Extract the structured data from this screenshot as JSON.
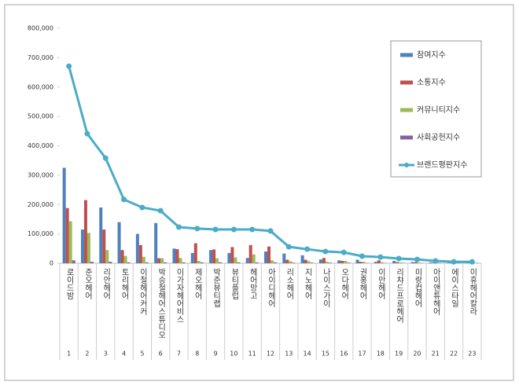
{
  "chart_data": {
    "type": "bar",
    "categories": [
      "로이드밤",
      "준오헤어",
      "리안헤어",
      "토리헤어",
      "이철헤어커커",
      "박승철헤어스튜디오",
      "이가자헤어비스",
      "제오헤어",
      "박준뷰티랩",
      "뷰티플럽",
      "헤어망고",
      "아이디헤어",
      "리소헤어",
      "지노헤어",
      "나이스가이",
      "오다헤어",
      "권홍헤어",
      "이만헤어",
      "리챠드프로헤어",
      "미랑컵헤어",
      "아이앤튜헤어",
      "에이스타일",
      "이휴헤어칼라"
    ],
    "ranks": [
      1,
      2,
      3,
      4,
      5,
      6,
      7,
      8,
      9,
      10,
      11,
      12,
      13,
      14,
      15,
      16,
      17,
      18,
      19,
      20,
      21,
      22,
      23
    ],
    "series": [
      {
        "name": "참여지수",
        "color": "#4f81bd",
        "type": "bar",
        "values": [
          325000,
          115000,
          190000,
          140000,
          100000,
          137000,
          50000,
          35000,
          45000,
          35000,
          18000,
          40000,
          33000,
          27000,
          13000,
          10000,
          12000,
          5000,
          8000,
          4000,
          3000,
          2000,
          2000
        ]
      },
      {
        "name": "소통지수",
        "color": "#c0504d",
        "type": "bar",
        "values": [
          188000,
          215000,
          115000,
          45000,
          62000,
          17000,
          48000,
          68000,
          47000,
          55000,
          62000,
          57000,
          12000,
          12000,
          18000,
          8000,
          5000,
          10000,
          4000,
          4000,
          2000,
          2000,
          1000
        ]
      },
      {
        "name": "커뮤니티지수",
        "color": "#9bbb59",
        "type": "bar",
        "values": [
          143000,
          103000,
          45000,
          25000,
          22000,
          17000,
          18000,
          8000,
          17000,
          20000,
          30000,
          10000,
          7000,
          7000,
          5000,
          8000,
          5000,
          4000,
          3000,
          3000,
          2000,
          1000,
          1000
        ]
      },
      {
        "name": "사회공헌지수",
        "color": "#8064a2",
        "type": "bar",
        "values": [
          10000,
          5000,
          5000,
          3000,
          3000,
          3000,
          3000,
          3000,
          3000,
          3000,
          3000,
          3000,
          2000,
          2000,
          2000,
          2000,
          1000,
          1000,
          1000,
          1000,
          1000,
          1000,
          1000
        ]
      },
      {
        "name": "브랜드평판지수",
        "color": "#4bacc6",
        "type": "line",
        "values": [
          671000,
          441000,
          358000,
          217000,
          190000,
          179000,
          123000,
          118000,
          115000,
          115000,
          115000,
          110000,
          56000,
          48000,
          40000,
          37000,
          24000,
          21000,
          16000,
          13000,
          8000,
          5000,
          5000
        ]
      }
    ],
    "ylim": [
      0,
      800000
    ],
    "yticks": [
      0,
      {
        "value": 100000,
        "label": "100,000"
      },
      {
        "value": 200000,
        "label": "200,000"
      },
      {
        "value": 300000,
        "label": "300,000"
      },
      {
        "value": 400000,
        "label": "400,000"
      },
      {
        "value": 500000,
        "label": "500,000"
      },
      {
        "value": 600000,
        "label": "600,000"
      },
      {
        "value": 700000,
        "label": "700,000"
      },
      {
        "value": 800000,
        "label": "800,000"
      }
    ],
    "grid": false,
    "legend": "right"
  }
}
